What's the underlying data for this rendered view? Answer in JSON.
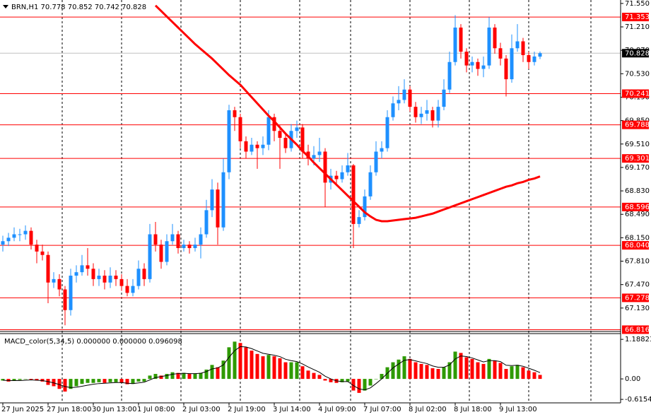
{
  "chart_data": {
    "type": "candlestick",
    "symbol": "BRN,H1",
    "categories": [
      "27 Jun 2025",
      null,
      null,
      null,
      null,
      null,
      null,
      null,
      "27 Jun 18:00",
      null,
      null,
      null,
      null,
      null,
      null,
      null,
      "30 Jun 13:00",
      null,
      null,
      null,
      null,
      null,
      null,
      null,
      "1 Jul 08:00",
      null,
      null,
      null,
      null,
      null,
      null,
      null,
      "2 Jul 03:00",
      null,
      null,
      null,
      null,
      null,
      null,
      null,
      "2 Jul 19:00",
      null,
      null,
      null,
      null,
      null,
      null,
      null,
      "3 Jul 14:00",
      null,
      null,
      null,
      null,
      null,
      null,
      null,
      "4 Jul 09:00",
      null,
      null,
      null,
      null,
      null,
      null,
      null,
      "7 Jul 07:00",
      null,
      null,
      null,
      null,
      null,
      null,
      null,
      "8 Jul 02:00",
      null,
      null,
      null,
      null,
      null,
      null,
      null,
      "8 Jul 18:00",
      null,
      null,
      null,
      null,
      null,
      null,
      null,
      "9 Jul 13:00",
      null,
      null,
      null,
      null,
      null,
      null,
      null
    ],
    "open": [
      68.05,
      68.1,
      68.15,
      68.2,
      68.2,
      68.25,
      68.05,
      67.95,
      67.9,
      67.5,
      67.55,
      67.4,
      67.1,
      67.6,
      67.65,
      67.75,
      67.7,
      67.55,
      67.6,
      67.5,
      67.6,
      67.55,
      67.45,
      67.35,
      67.45,
      67.7,
      67.55,
      68.2,
      68.05,
      67.8,
      68.1,
      68.2,
      68.0,
      68.05,
      68.0,
      68.05,
      68.2,
      68.55,
      68.85,
      68.3,
      69.1,
      70.0,
      69.9,
      69.55,
      69.4,
      69.5,
      69.45,
      69.5,
      69.9,
      69.7,
      69.6,
      69.45,
      69.7,
      69.75,
      69.4,
      69.3,
      69.35,
      69.4,
      68.95,
      69.05,
      69.0,
      69.1,
      69.2,
      68.35,
      68.45,
      68.75,
      69.1,
      69.4,
      69.45,
      69.9,
      70.1,
      70.15,
      70.3,
      70.05,
      69.9,
      69.95,
      70.0,
      69.85,
      70.05,
      70.3,
      70.7,
      71.2,
      70.85,
      70.65,
      70.7,
      70.6,
      70.65,
      71.2,
      70.9,
      70.75,
      70.45,
      70.9,
      71.0,
      70.8,
      70.7,
      70.778
    ],
    "high": [
      68.18,
      68.22,
      68.3,
      68.28,
      68.33,
      68.3,
      68.12,
      68.05,
      67.95,
      67.65,
      67.62,
      67.45,
      67.7,
      67.75,
      67.9,
      68.0,
      67.78,
      67.7,
      67.68,
      67.72,
      67.68,
      67.62,
      67.55,
      67.55,
      67.82,
      67.78,
      68.35,
      68.38,
      68.12,
      68.2,
      68.35,
      68.25,
      68.12,
      68.1,
      68.15,
      68.3,
      68.7,
      69.0,
      68.95,
      69.3,
      70.08,
      70.05,
      69.95,
      69.62,
      69.6,
      69.55,
      69.62,
      70.0,
      69.95,
      69.78,
      69.68,
      69.8,
      69.85,
      69.8,
      69.5,
      69.48,
      69.6,
      69.45,
      69.15,
      69.12,
      69.2,
      69.38,
      69.22,
      68.55,
      68.85,
      69.2,
      69.55,
      69.55,
      70.0,
      70.2,
      70.35,
      70.45,
      70.35,
      70.12,
      70.05,
      70.15,
      70.05,
      70.15,
      70.45,
      70.85,
      71.38,
      71.25,
      70.9,
      70.78,
      70.75,
      70.78,
      71.35,
      71.25,
      70.98,
      70.8,
      71.1,
      71.25,
      71.05,
      70.85,
      70.85,
      70.852
    ],
    "low": [
      67.95,
      68.03,
      68.1,
      68.1,
      68.12,
      67.98,
      67.78,
      67.82,
      67.2,
      67.42,
      67.3,
      66.88,
      67.02,
      67.5,
      67.6,
      67.6,
      67.45,
      67.45,
      67.4,
      67.42,
      67.45,
      67.38,
      67.3,
      67.3,
      67.4,
      67.45,
      67.5,
      67.95,
      67.7,
      67.75,
      68.05,
      67.92,
      67.95,
      67.92,
      67.95,
      67.85,
      68.15,
      68.45,
      68.05,
      68.25,
      69.0,
      69.7,
      69.45,
      69.3,
      69.35,
      69.15,
      69.35,
      69.42,
      69.55,
      69.15,
      69.38,
      69.4,
      69.6,
      69.3,
      69.2,
      69.2,
      69.25,
      68.6,
      68.85,
      68.9,
      68.95,
      69.05,
      68.0,
      68.3,
      68.4,
      68.7,
      69.05,
      69.3,
      69.4,
      69.85,
      70.0,
      70.1,
      69.98,
      69.82,
      69.8,
      69.85,
      69.75,
      69.75,
      70.0,
      70.25,
      70.65,
      70.75,
      70.55,
      70.55,
      70.5,
      70.48,
      70.6,
      70.82,
      70.65,
      70.2,
      70.4,
      70.85,
      70.7,
      70.6,
      70.65,
      70.742
    ],
    "close": [
      68.1,
      68.15,
      68.2,
      68.2,
      68.25,
      68.05,
      67.95,
      67.9,
      67.5,
      67.55,
      67.4,
      67.1,
      67.6,
      67.65,
      67.75,
      67.7,
      67.55,
      67.6,
      67.5,
      67.6,
      67.55,
      67.45,
      67.35,
      67.45,
      67.7,
      67.55,
      68.2,
      68.05,
      67.8,
      68.1,
      68.2,
      68.0,
      68.05,
      68.0,
      68.05,
      68.2,
      68.55,
      68.85,
      68.3,
      69.1,
      70.0,
      69.9,
      69.55,
      69.4,
      69.5,
      69.45,
      69.5,
      69.9,
      69.7,
      69.6,
      69.45,
      69.7,
      69.75,
      69.4,
      69.3,
      69.35,
      69.4,
      68.95,
      69.05,
      69.0,
      69.1,
      69.2,
      68.35,
      68.45,
      68.75,
      69.1,
      69.4,
      69.45,
      69.9,
      70.1,
      70.15,
      70.3,
      70.05,
      69.9,
      69.95,
      70.0,
      69.85,
      70.05,
      70.3,
      70.7,
      71.2,
      70.85,
      70.65,
      70.7,
      70.6,
      70.65,
      71.2,
      70.9,
      70.75,
      70.45,
      70.9,
      71.0,
      70.8,
      70.7,
      70.78,
      70.828
    ],
    "up_color": "#1e90ff",
    "down_color": "#ff0000",
    "ylim": [
      66.8,
      71.6
    ],
    "yticks": [
      {
        "value": 71.55,
        "label": "71.550"
      },
      {
        "value": 71.21,
        "label": "71.210"
      },
      {
        "value": 70.87,
        "label": "70.870"
      },
      {
        "value": 70.53,
        "label": "70.530"
      },
      {
        "value": 70.19,
        "label": "70.190"
      },
      {
        "value": 69.85,
        "label": "69.850"
      },
      {
        "value": 69.51,
        "label": "69.510"
      },
      {
        "value": 69.17,
        "label": "69.170"
      },
      {
        "value": 68.83,
        "label": "68.830"
      },
      {
        "value": 68.49,
        "label": "68.490"
      },
      {
        "value": 68.15,
        "label": "68.150"
      },
      {
        "value": 67.81,
        "label": "67.810"
      },
      {
        "value": 67.47,
        "label": "67.470"
      },
      {
        "value": 67.13,
        "label": "67.130"
      }
    ],
    "moving_average": {
      "color": "#ff0000",
      "values": [
        null,
        null,
        null,
        null,
        null,
        null,
        null,
        null,
        null,
        null,
        null,
        null,
        null,
        null,
        null,
        null,
        null,
        null,
        null,
        null,
        null,
        null,
        null,
        null,
        null,
        null,
        null,
        71.52,
        71.44,
        71.36,
        71.28,
        71.2,
        71.12,
        71.04,
        70.96,
        70.89,
        70.82,
        70.75,
        70.67,
        70.59,
        70.51,
        70.44,
        70.37,
        70.28,
        70.19,
        70.1,
        70.01,
        69.92,
        69.84,
        69.75,
        69.66,
        69.58,
        69.5,
        69.41,
        69.33,
        69.24,
        69.16,
        69.08,
        69.0,
        68.92,
        68.84,
        68.76,
        68.68,
        68.6,
        68.52,
        68.46,
        68.41,
        68.39,
        68.39,
        68.4,
        68.41,
        68.42,
        68.43,
        68.44,
        68.46,
        68.48,
        68.5,
        68.53,
        68.56,
        68.59,
        68.62,
        68.65,
        68.68,
        68.71,
        68.74,
        68.77,
        68.8,
        68.83,
        68.86,
        68.89,
        68.91,
        68.94,
        68.96,
        68.99,
        69.01,
        69.04
      ]
    },
    "levels": [
      71.353,
      70.241,
      69.788,
      69.301,
      68.596,
      {
        "value": 68.04,
        "label": "68.040"
      },
      67.278,
      66.816
    ],
    "level_color": "#ff0000",
    "current_price": 70.828,
    "macd": {
      "title": "MACD_color(5,34,5) 0.000000 0.000000 0.096098",
      "up_color": "#2e9a00",
      "down_color": "#ff0000",
      "signal_color": "#000000",
      "ylim": [
        -0.72,
        1.34
      ],
      "yticks": [
        1.188237,
        {
          "value": 0,
          "label": "0.00"
        },
        -0.615403
      ],
      "values": [
        -0.05,
        -0.08,
        -0.06,
        -0.03,
        0.0,
        -0.02,
        -0.05,
        -0.08,
        -0.18,
        -0.22,
        -0.3,
        -0.38,
        -0.3,
        -0.22,
        -0.15,
        -0.12,
        -0.12,
        -0.1,
        -0.12,
        -0.1,
        -0.1,
        -0.12,
        -0.16,
        -0.15,
        -0.08,
        -0.08,
        0.1,
        0.15,
        0.1,
        0.15,
        0.2,
        0.18,
        0.18,
        0.15,
        0.15,
        0.18,
        0.28,
        0.42,
        0.35,
        0.55,
        0.95,
        1.12,
        1.08,
        0.95,
        0.85,
        0.75,
        0.68,
        0.72,
        0.68,
        0.62,
        0.5,
        0.5,
        0.5,
        0.38,
        0.25,
        0.18,
        0.12,
        -0.05,
        -0.1,
        -0.12,
        -0.1,
        -0.08,
        -0.35,
        -0.42,
        -0.35,
        -0.2,
        0.0,
        0.15,
        0.35,
        0.5,
        0.58,
        0.68,
        0.6,
        0.5,
        0.45,
        0.42,
        0.32,
        0.3,
        0.35,
        0.5,
        0.82,
        0.78,
        0.65,
        0.6,
        0.5,
        0.45,
        0.6,
        0.55,
        0.48,
        0.3,
        0.38,
        0.42,
        0.35,
        0.25,
        0.2,
        0.12
      ],
      "signal": [
        -0.04,
        -0.05,
        -0.05,
        -0.05,
        -0.04,
        -0.03,
        -0.04,
        -0.05,
        -0.08,
        -0.12,
        -0.17,
        -0.23,
        -0.26,
        -0.25,
        -0.22,
        -0.19,
        -0.16,
        -0.14,
        -0.13,
        -0.12,
        -0.11,
        -0.11,
        -0.13,
        -0.14,
        -0.12,
        -0.1,
        -0.03,
        0.04,
        0.07,
        0.1,
        0.14,
        0.16,
        0.17,
        0.16,
        0.16,
        0.17,
        0.22,
        0.3,
        0.33,
        0.42,
        0.65,
        0.85,
        0.97,
        0.96,
        0.91,
        0.84,
        0.77,
        0.74,
        0.71,
        0.67,
        0.59,
        0.55,
        0.52,
        0.45,
        0.36,
        0.28,
        0.2,
        0.08,
        0.0,
        -0.06,
        -0.08,
        -0.08,
        -0.2,
        -0.3,
        -0.33,
        -0.27,
        -0.14,
        0.0,
        0.17,
        0.33,
        0.45,
        0.56,
        0.58,
        0.54,
        0.5,
        0.46,
        0.39,
        0.35,
        0.35,
        0.42,
        0.6,
        0.69,
        0.67,
        0.63,
        0.57,
        0.51,
        0.55,
        0.55,
        0.52,
        0.41,
        0.4,
        0.41,
        0.38,
        0.32,
        0.26,
        0.19
      ]
    }
  }
}
